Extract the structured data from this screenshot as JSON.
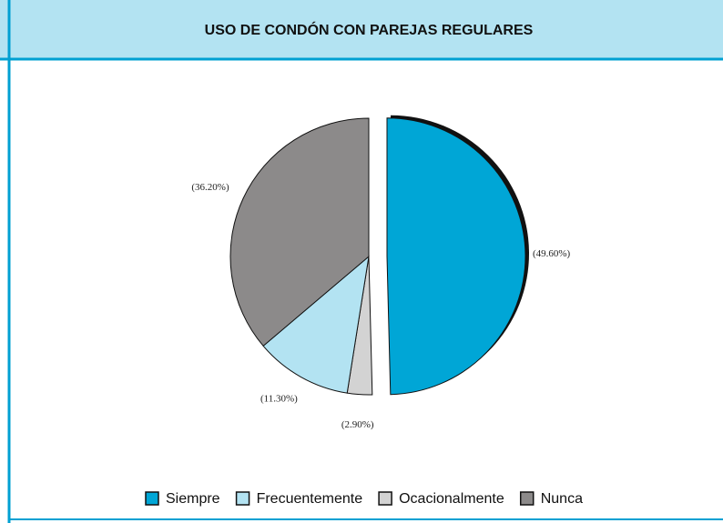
{
  "chart_data": {
    "type": "pie",
    "title": "USO DE CONDÓN CON PAREJAS REGULARES",
    "categories": [
      "Siempre",
      "Frecuentemente",
      "Ocacionalmente",
      "Nunca"
    ],
    "values": [
      49.6,
      11.3,
      2.9,
      36.2
    ],
    "value_labels": [
      "(49.60%)",
      "(11.30%)",
      "(2.90%)",
      "(36.20%)"
    ],
    "colors": [
      "#00a6d6",
      "#b3e3f2",
      "#d3d3d3",
      "#8c8a8a"
    ],
    "exploded": [
      "Siempre"
    ],
    "legend": "bottom"
  }
}
